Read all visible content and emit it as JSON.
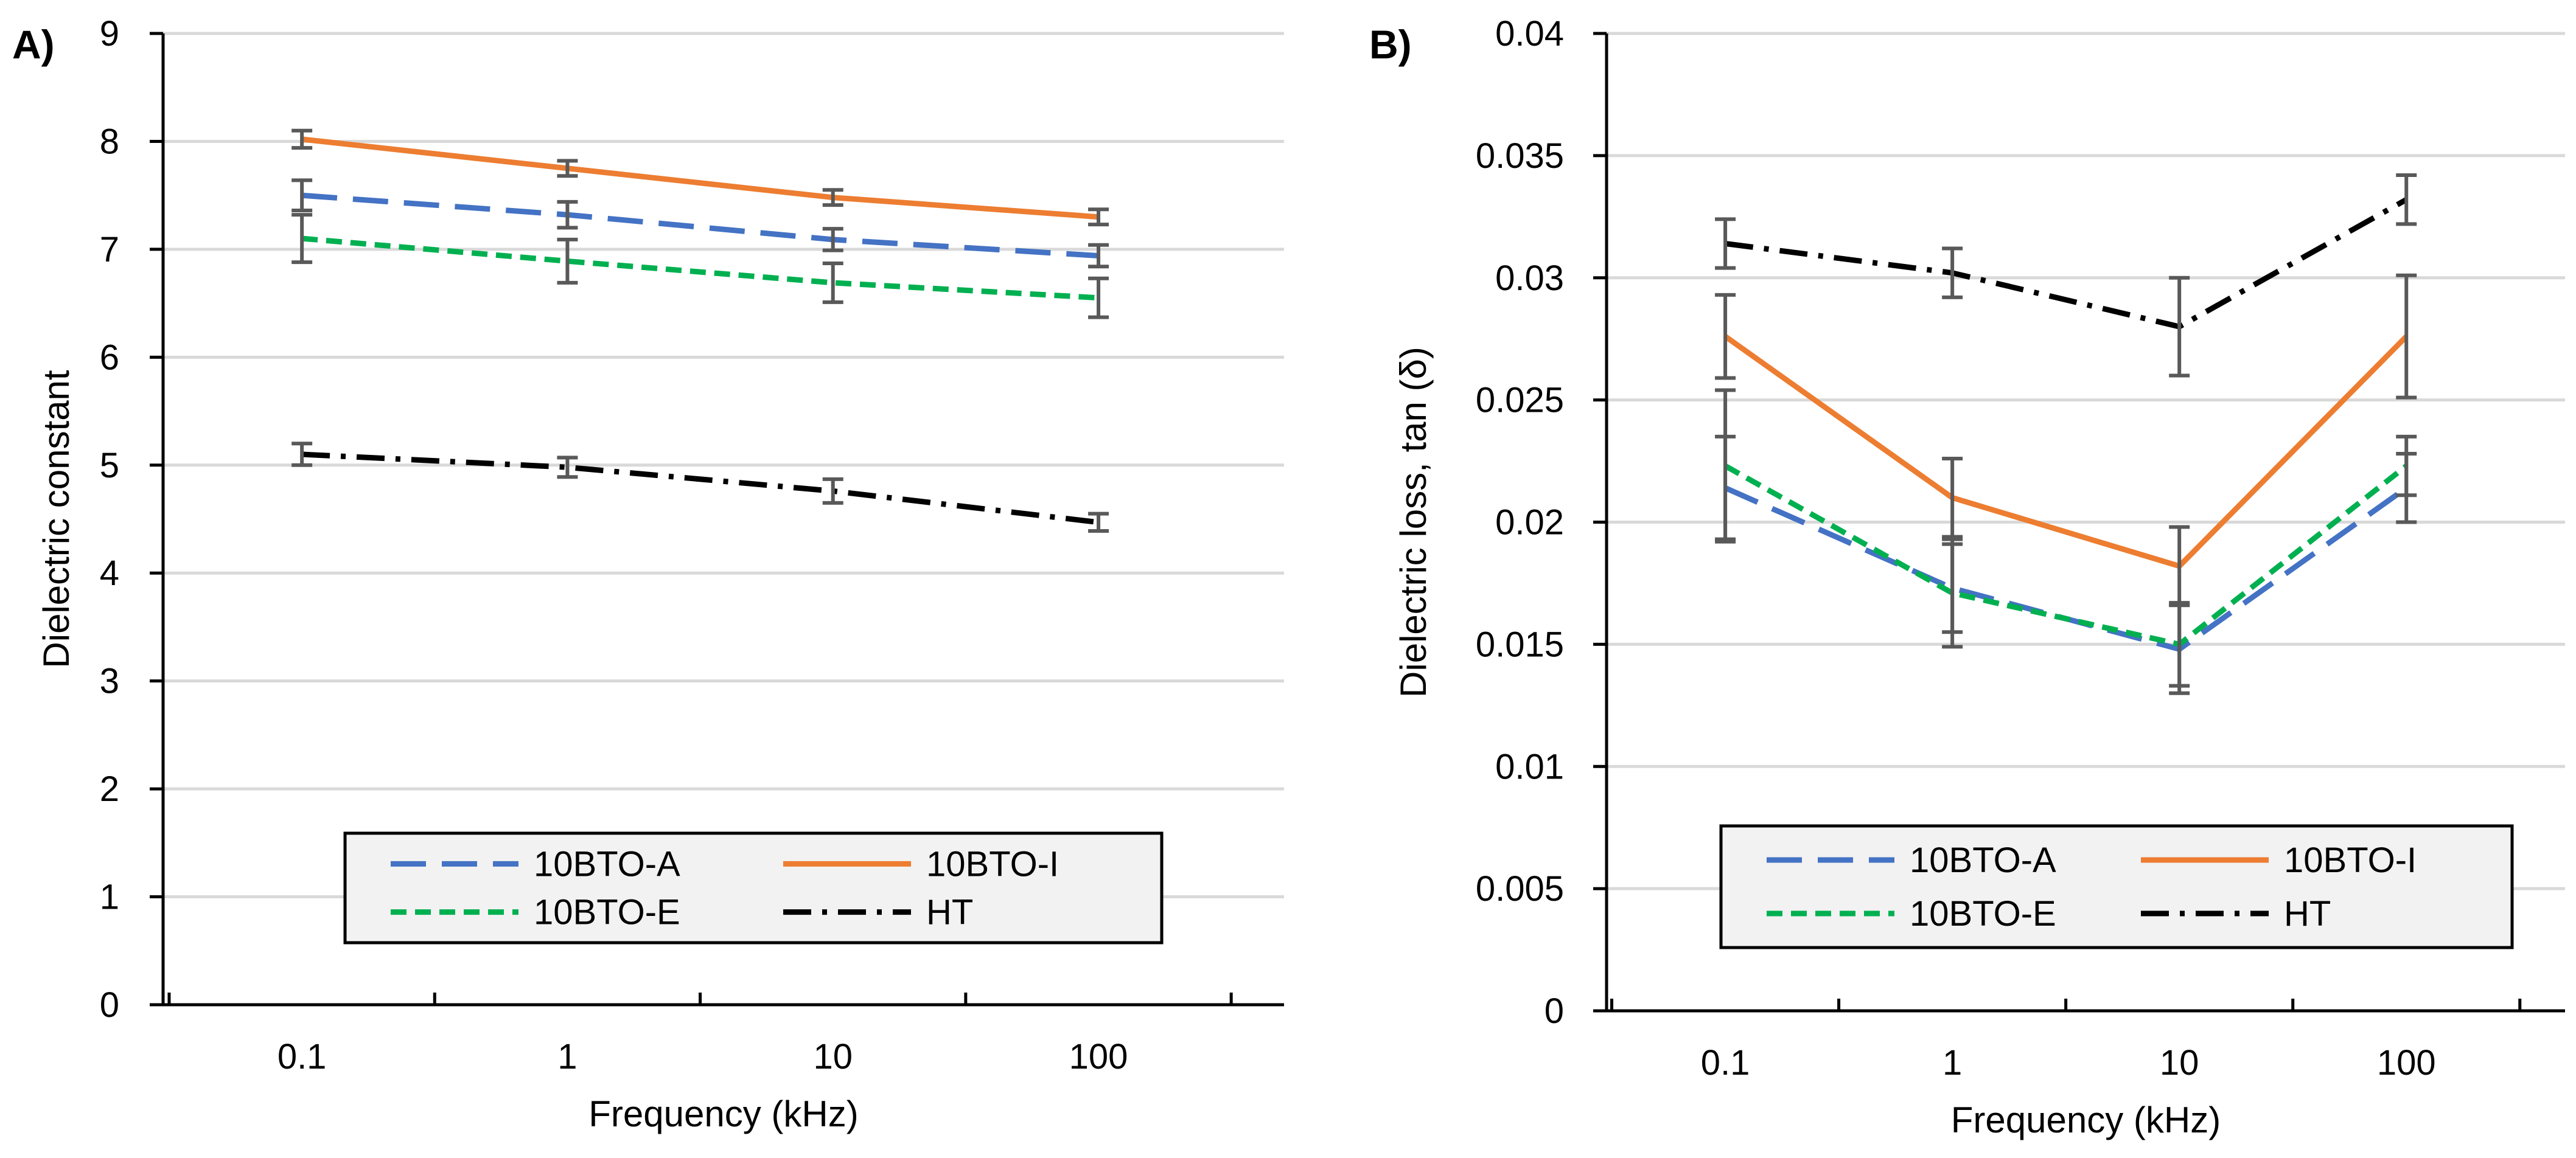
{
  "chart_data": [
    {
      "type": "line",
      "panel_label": "A)",
      "title": "",
      "xlabel": "Frequency (kHz)",
      "ylabel": "Dielectric constant",
      "x_scale": "log",
      "categories": [
        "0.1",
        "1",
        "10",
        "100"
      ],
      "x": [
        0.1,
        1,
        10,
        100
      ],
      "xlim": [
        0.03,
        500
      ],
      "ylim": [
        0,
        9
      ],
      "yticks": [
        "0",
        "1",
        "2",
        "3",
        "4",
        "5",
        "6",
        "7",
        "8",
        "9"
      ],
      "grid": "horizontal",
      "legend_position": "bottom-center",
      "series": [
        {
          "name": "10BTO-A",
          "style": "long-dash",
          "color": "#4472C4",
          "values": [
            7.5,
            7.32,
            7.09,
            6.94
          ],
          "errors": [
            0.14,
            0.12,
            0.1,
            0.1
          ]
        },
        {
          "name": "10BTO-I",
          "style": "solid",
          "color": "#ED7D31",
          "values": [
            8.02,
            7.75,
            7.48,
            7.3
          ],
          "errors": [
            0.08,
            0.07,
            0.07,
            0.07
          ]
        },
        {
          "name": "10BTO-E",
          "style": "short-dash",
          "color": "#00B050",
          "values": [
            7.1,
            6.89,
            6.69,
            6.55
          ],
          "errors": [
            0.22,
            0.2,
            0.18,
            0.18
          ]
        },
        {
          "name": "HT",
          "style": "dash-dot",
          "color": "#000000",
          "values": [
            5.1,
            4.98,
            4.76,
            4.47
          ],
          "errors": [
            0.1,
            0.09,
            0.11,
            0.08
          ]
        }
      ]
    },
    {
      "type": "line",
      "panel_label": "B)",
      "title": "",
      "xlabel": "Frequency (kHz)",
      "ylabel": "Dielectric loss, tan (δ)",
      "x_scale": "log",
      "categories": [
        "0.1",
        "1",
        "10",
        "100"
      ],
      "x": [
        0.1,
        1,
        10,
        100
      ],
      "xlim": [
        0.03,
        500
      ],
      "ylim": [
        0,
        0.04
      ],
      "yticks": [
        "0",
        "0.005",
        "0.01",
        "0.015",
        "0.02",
        "0.025",
        "0.03",
        "0.035",
        "0.04"
      ],
      "grid": "horizontal",
      "legend_position": "bottom-center",
      "series": [
        {
          "name": "10BTO-A",
          "style": "long-dash",
          "color": "#4472C4",
          "values": [
            0.0214,
            0.0173,
            0.0148,
            0.0214
          ],
          "errors": [
            0.0021,
            0.0018,
            0.0018,
            0.0014
          ]
        },
        {
          "name": "10BTO-I",
          "style": "solid",
          "color": "#ED7D31",
          "values": [
            0.0276,
            0.021,
            0.0182,
            0.0276
          ],
          "errors": [
            0.0017,
            0.0016,
            0.0016,
            0.0025
          ]
        },
        {
          "name": "10BTO-E",
          "style": "short-dash",
          "color": "#00B050",
          "values": [
            0.0223,
            0.0171,
            0.015,
            0.0223
          ],
          "errors": [
            0.0031,
            0.0022,
            0.0017,
            0.0012
          ]
        },
        {
          "name": "HT",
          "style": "dash-dot",
          "color": "#000000",
          "values": [
            0.0314,
            0.0302,
            0.028,
            0.0332
          ],
          "errors": [
            0.001,
            0.001,
            0.002,
            0.001
          ]
        }
      ]
    }
  ]
}
